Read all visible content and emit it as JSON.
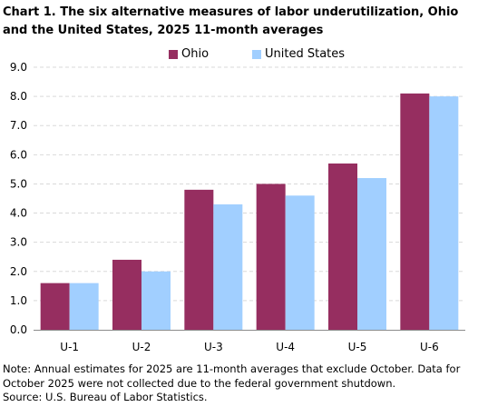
{
  "chart_data": {
    "type": "bar",
    "title": "Chart 1. The six alternative measures of labor underutilization, Ohio and the United States, 2025 11-month averages",
    "categories": [
      "U-1",
      "U-2",
      "U-3",
      "U-4",
      "U-5",
      "U-6"
    ],
    "series": [
      {
        "name": "Ohio",
        "color": "#962E60",
        "values": [
          1.6,
          2.4,
          4.8,
          5.0,
          5.7,
          8.1
        ]
      },
      {
        "name": "United States",
        "color": "#A1CFFF",
        "values": [
          1.6,
          2.0,
          4.3,
          4.6,
          5.2,
          8.0
        ]
      }
    ],
    "ylim": [
      0,
      9
    ],
    "yticks": [
      "0.0",
      "1.0",
      "2.0",
      "3.0",
      "4.0",
      "5.0",
      "6.0",
      "7.0",
      "8.0",
      "9.0"
    ],
    "grid": true,
    "legend": "top-center"
  },
  "note": "Note: Annual estimates for 2025 are 11-month averages that exclude October. Data for October 2025 were not collected due to the federal government shutdown.",
  "source": "Source: U.S. Bureau of Labor Statistics."
}
